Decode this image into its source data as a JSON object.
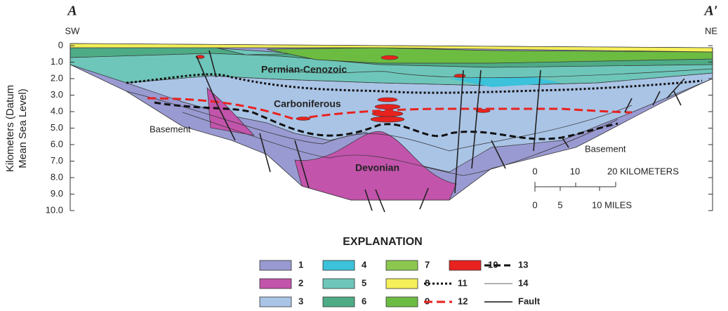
{
  "section": {
    "start_label": "A",
    "end_label": "A′",
    "start_direction": "SW",
    "end_direction": "NE"
  },
  "axis": {
    "label": "Kilometers (Datum Mean Sea Level)",
    "ticks": [
      "0",
      "1.0",
      "2.0",
      "3.0",
      "4.0",
      "5.0",
      "6.0",
      "7.0",
      "8.0",
      "9.0",
      "10.0"
    ]
  },
  "units": [
    "Permian-Cenozoic",
    "Carboniferous",
    "Devonian",
    "Basement",
    "Basement"
  ],
  "scale_bar": {
    "km_labels": [
      "0",
      "10",
      "20 KILOMETERS"
    ],
    "mile_labels": [
      "0",
      "5",
      "10 MILES"
    ]
  },
  "explanation": {
    "title": "EXPLANATION",
    "items": [
      "1",
      "2",
      "3",
      "4",
      "5",
      "6",
      "7",
      "8",
      "9",
      "10",
      "11",
      "12",
      "13",
      "14",
      "Fault"
    ]
  }
}
